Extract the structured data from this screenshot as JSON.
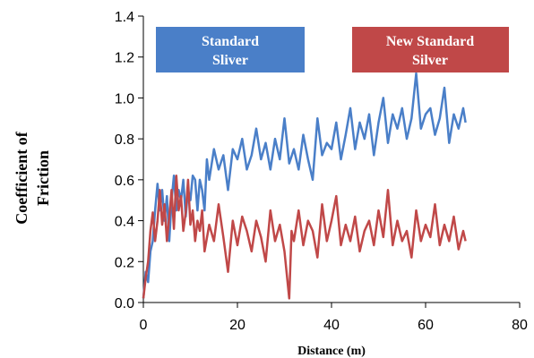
{
  "chart_data": {
    "type": "line",
    "title": "",
    "xlabel": "Distance (m)",
    "ylabel_lines": [
      "Coefficient of",
      "Friction"
    ],
    "xlim": [
      0,
      80
    ],
    "ylim": [
      0,
      1.4
    ],
    "x_ticks": [
      "0",
      "20",
      "40",
      "60",
      "80"
    ],
    "y_ticks": [
      "0.0",
      "0.2",
      "0.4",
      "0.6",
      "0.8",
      "1.0",
      "1.2",
      "1.4"
    ],
    "grid": false,
    "legend_placement": "top",
    "series": [
      {
        "name_lines": [
          "Standard",
          "Sliver"
        ],
        "color": "#4a7fc8",
        "x": [
          0,
          0.5,
          1,
          1.5,
          2,
          2.5,
          3,
          3.5,
          4,
          4.5,
          5,
          5.5,
          6,
          6.5,
          7,
          7.5,
          8,
          8.5,
          9,
          9.5,
          10,
          10.5,
          11,
          11.5,
          12,
          12.5,
          13,
          13.5,
          14,
          15,
          16,
          17,
          18,
          19,
          20,
          21,
          22,
          23,
          24,
          25,
          26,
          27,
          28,
          29,
          30,
          31,
          32,
          33,
          34,
          35,
          36,
          37,
          38,
          39,
          40,
          41,
          42,
          43,
          44,
          45,
          46,
          47,
          48,
          49,
          50,
          51,
          52,
          53,
          54,
          55,
          56,
          57,
          58,
          59,
          60,
          61,
          62,
          63,
          64,
          65,
          66,
          67,
          68,
          68.5
        ],
        "y": [
          0.02,
          0.15,
          0.1,
          0.25,
          0.3,
          0.45,
          0.58,
          0.45,
          0.55,
          0.4,
          0.52,
          0.3,
          0.5,
          0.62,
          0.45,
          0.55,
          0.5,
          0.6,
          0.42,
          0.55,
          0.5,
          0.62,
          0.6,
          0.45,
          0.6,
          0.55,
          0.45,
          0.7,
          0.6,
          0.75,
          0.65,
          0.72,
          0.55,
          0.75,
          0.7,
          0.8,
          0.65,
          0.72,
          0.85,
          0.7,
          0.78,
          0.65,
          0.8,
          0.7,
          0.9,
          0.68,
          0.75,
          0.65,
          0.82,
          0.7,
          0.6,
          0.9,
          0.72,
          0.78,
          0.75,
          0.88,
          0.7,
          0.82,
          0.95,
          0.75,
          0.88,
          0.8,
          0.92,
          0.72,
          0.88,
          1.0,
          0.78,
          0.92,
          0.85,
          0.95,
          0.8,
          0.9,
          1.12,
          0.85,
          0.92,
          0.95,
          0.82,
          0.9,
          1.05,
          0.78,
          0.92,
          0.85,
          0.95,
          0.88
        ]
      },
      {
        "name_lines": [
          "New Standard",
          "Silver"
        ],
        "color": "#c04848",
        "x": [
          0,
          0.5,
          1,
          1.5,
          2,
          2.5,
          3,
          3.5,
          4,
          4.5,
          5,
          5.5,
          6,
          6.5,
          7,
          7.5,
          8,
          8.5,
          9,
          9.5,
          10,
          10.5,
          11,
          11.5,
          12,
          12.5,
          13,
          14,
          15,
          16,
          17,
          18,
          19,
          20,
          21,
          22,
          23,
          24,
          25,
          26,
          27,
          28,
          29,
          30,
          31,
          31.5,
          32,
          33,
          34,
          35,
          36,
          37,
          38,
          39,
          40,
          41,
          42,
          43,
          44,
          45,
          46,
          47,
          48,
          49,
          50,
          51,
          52,
          53,
          54,
          55,
          56,
          57,
          58,
          59,
          60,
          61,
          62,
          63,
          64,
          65,
          66,
          67,
          68,
          68.5
        ],
        "y": [
          0.02,
          0.12,
          0.2,
          0.35,
          0.44,
          0.3,
          0.4,
          0.55,
          0.38,
          0.48,
          0.3,
          0.42,
          0.55,
          0.36,
          0.62,
          0.45,
          0.52,
          0.35,
          0.44,
          0.6,
          0.38,
          0.45,
          0.3,
          0.4,
          0.35,
          0.45,
          0.25,
          0.38,
          0.3,
          0.48,
          0.32,
          0.15,
          0.4,
          0.28,
          0.42,
          0.35,
          0.25,
          0.4,
          0.32,
          0.2,
          0.45,
          0.3,
          0.38,
          0.25,
          0.02,
          0.35,
          0.3,
          0.45,
          0.28,
          0.4,
          0.35,
          0.22,
          0.48,
          0.3,
          0.4,
          0.52,
          0.28,
          0.38,
          0.3,
          0.42,
          0.25,
          0.35,
          0.4,
          0.28,
          0.45,
          0.32,
          0.55,
          0.28,
          0.4,
          0.3,
          0.35,
          0.22,
          0.45,
          0.3,
          0.38,
          0.32,
          0.48,
          0.28,
          0.38,
          0.3,
          0.42,
          0.26,
          0.35,
          0.3
        ]
      }
    ]
  }
}
